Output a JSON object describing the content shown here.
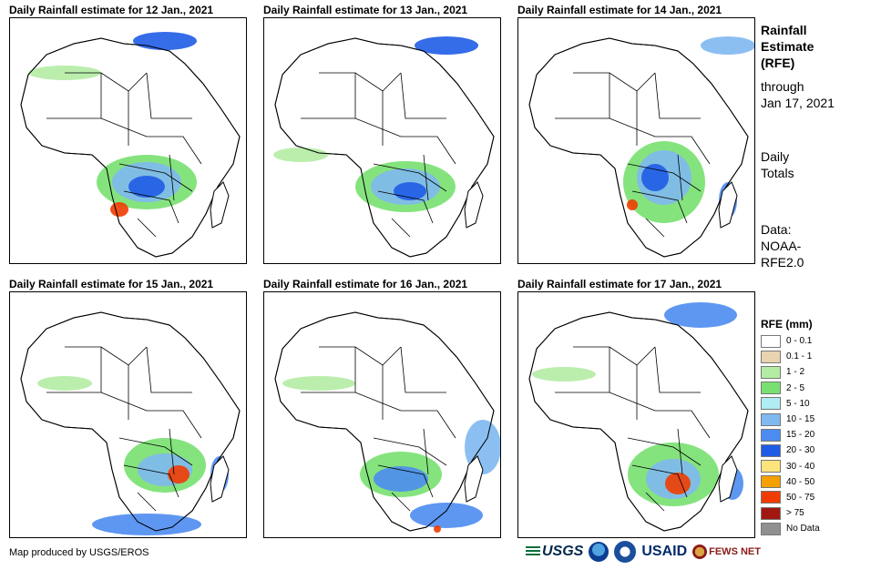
{
  "panels": [
    {
      "title": "Daily Rainfall estimate for 12 Jan., 2021"
    },
    {
      "title": "Daily Rainfall estimate for 13 Jan., 2021"
    },
    {
      "title": "Daily Rainfall estimate for 14 Jan., 2021"
    },
    {
      "title": "Daily Rainfall estimate for 15 Jan., 2021"
    },
    {
      "title": "Daily Rainfall estimate for 16 Jan., 2021"
    },
    {
      "title": "Daily Rainfall estimate for 17 Jan., 2021"
    }
  ],
  "side": {
    "title_l1": "Rainfall",
    "title_l2": "Estimate",
    "title_l3": "(RFE)",
    "through_l1": "through",
    "through_l2": "Jan 17, 2021",
    "totals_l1": "Daily",
    "totals_l2": "Totals",
    "data_l1": "Data:",
    "data_l2": "NOAA-",
    "data_l3": "RFE2.0"
  },
  "legend": {
    "title": "RFE (mm)",
    "items": [
      {
        "label": "0 - 0.1",
        "color": "#ffffff"
      },
      {
        "label": "0.1 - 1",
        "color": "#e8d4b0"
      },
      {
        "label": "1 - 2",
        "color": "#b4eca4"
      },
      {
        "label": "2 - 5",
        "color": "#78e070"
      },
      {
        "label": "5 - 10",
        "color": "#b0ecf4"
      },
      {
        "label": "10 - 15",
        "color": "#80b8f0"
      },
      {
        "label": "15 - 20",
        "color": "#4c8cf0"
      },
      {
        "label": "20 - 30",
        "color": "#1f5ce6"
      },
      {
        "label": "30 - 40",
        "color": "#fce47c"
      },
      {
        "label": "40 - 50",
        "color": "#f4a000"
      },
      {
        "label": "50 - 75",
        "color": "#f03c00"
      },
      {
        "label": "> 75",
        "color": "#a01810"
      },
      {
        "label": "No Data",
        "color": "#909090"
      }
    ]
  },
  "footer": {
    "credit": "Map produced by USGS/EROS"
  },
  "logos": {
    "usgs": "USGS",
    "usaid": "USAID",
    "fews": "FEWS NET"
  }
}
